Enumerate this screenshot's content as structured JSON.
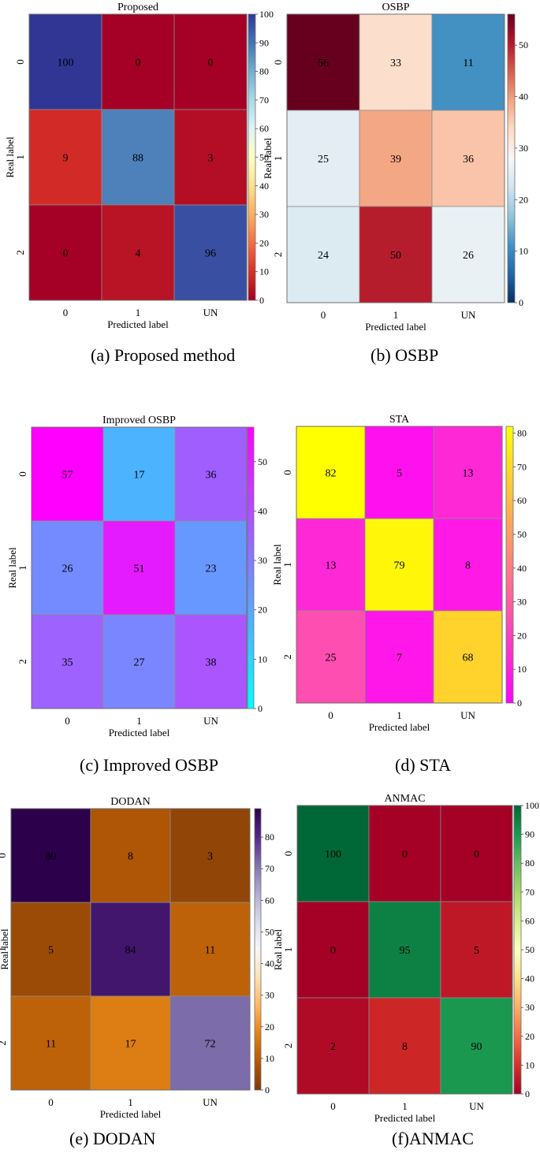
{
  "chart_data": [
    {
      "type": "heatmap",
      "title": "Proposed",
      "caption": "(a) Proposed method",
      "xlabel": "Predicted label",
      "ylabel": "Real label",
      "x_categories": [
        "0",
        "1",
        "UN"
      ],
      "y_categories": [
        "0",
        "1",
        "2"
      ],
      "values": [
        [
          100,
          0,
          0
        ],
        [
          9,
          88,
          3
        ],
        [
          0,
          4,
          96
        ]
      ],
      "colorbar": {
        "min": 0,
        "max": 100,
        "ticks": [
          0,
          10,
          20,
          30,
          40,
          50,
          60,
          70,
          80,
          90,
          100
        ],
        "colors": [
          "#a50026",
          "#d73027",
          "#f46d43",
          "#fdae61",
          "#fee090",
          "#ffffbf",
          "#e0f3f8",
          "#abd9e9",
          "#74add1",
          "#4575b4",
          "#313695"
        ]
      }
    },
    {
      "type": "heatmap",
      "title": "OSBP",
      "caption": "(b) OSBP",
      "xlabel": "Predicted label",
      "ylabel": "Real label",
      "x_categories": [
        "0",
        "1",
        "UN"
      ],
      "y_categories": [
        "0",
        "1",
        "2"
      ],
      "values": [
        [
          56,
          33,
          11
        ],
        [
          25,
          39,
          36
        ],
        [
          24,
          50,
          26
        ]
      ],
      "colorbar": {
        "min": 0,
        "max": 56,
        "ticks": [
          0,
          10,
          20,
          30,
          40,
          50
        ],
        "colors": [
          "#053061",
          "#2166ac",
          "#4393c3",
          "#92c5de",
          "#d1e5f0",
          "#f7f7f7",
          "#fddbc7",
          "#f4a582",
          "#d6604d",
          "#b2182b",
          "#67001f"
        ]
      }
    },
    {
      "type": "heatmap",
      "title": "Improved OSBP",
      "caption": "(c) Improved OSBP",
      "xlabel": "Predicted label",
      "ylabel": "Real label",
      "x_categories": [
        "0",
        "1",
        "UN"
      ],
      "y_categories": [
        "0",
        "1",
        "2"
      ],
      "values": [
        [
          57,
          17,
          36
        ],
        [
          26,
          51,
          23
        ],
        [
          35,
          27,
          38
        ]
      ],
      "colorbar": {
        "min": 0,
        "max": 57,
        "ticks": [
          0,
          10,
          20,
          30,
          40,
          50
        ],
        "colors": [
          "#00ffff",
          "#ff00ff"
        ]
      }
    },
    {
      "type": "heatmap",
      "title": "STA",
      "caption": "(d) STA",
      "xlabel": "Predicted label",
      "ylabel": "Real label",
      "x_categories": [
        "0",
        "1",
        "UN"
      ],
      "y_categories": [
        "0",
        "1",
        "2"
      ],
      "values": [
        [
          82,
          5,
          13
        ],
        [
          13,
          79,
          8
        ],
        [
          25,
          7,
          68
        ]
      ],
      "colorbar": {
        "min": 0,
        "max": 82,
        "ticks": [
          0,
          10,
          20,
          30,
          40,
          50,
          60,
          70,
          80
        ],
        "colors": [
          "#ff00ff",
          "#ffff00"
        ]
      }
    },
    {
      "type": "heatmap",
      "title": "DODAN",
      "caption": "(e) DODAN",
      "xlabel": "Predicted label",
      "ylabel": "Real label",
      "x_categories": [
        "0",
        "1",
        "UN"
      ],
      "y_categories": [
        "0",
        "1",
        "2"
      ],
      "values": [
        [
          89,
          8,
          3
        ],
        [
          5,
          84,
          11
        ],
        [
          11,
          17,
          72
        ]
      ],
      "colorbar": {
        "min": 0,
        "max": 89,
        "ticks": [
          0,
          10,
          20,
          30,
          40,
          50,
          60,
          70,
          80
        ],
        "colors": [
          "#7f3b08",
          "#b35806",
          "#e08214",
          "#fdb863",
          "#fee0b6",
          "#f7f7f7",
          "#d8daeb",
          "#b2abd2",
          "#8073ac",
          "#542788",
          "#2d004b"
        ]
      }
    },
    {
      "type": "heatmap",
      "title": "ANMAC",
      "caption": "(f)ANMAC",
      "xlabel": "Predicted label",
      "ylabel": "Real label",
      "x_categories": [
        "0",
        "1",
        "UN"
      ],
      "y_categories": [
        "0",
        "1",
        "2"
      ],
      "values": [
        [
          100,
          0,
          0
        ],
        [
          0,
          95,
          5
        ],
        [
          2,
          8,
          90
        ]
      ],
      "colorbar": {
        "min": 0,
        "max": 100,
        "ticks": [
          0,
          10,
          20,
          30,
          40,
          50,
          60,
          70,
          80,
          90,
          100
        ],
        "colors": [
          "#a50026",
          "#d73027",
          "#f46d43",
          "#fdae61",
          "#fee08b",
          "#ffffbf",
          "#d9ef8b",
          "#a6d96a",
          "#66bd63",
          "#1a9850",
          "#006837"
        ]
      }
    }
  ]
}
